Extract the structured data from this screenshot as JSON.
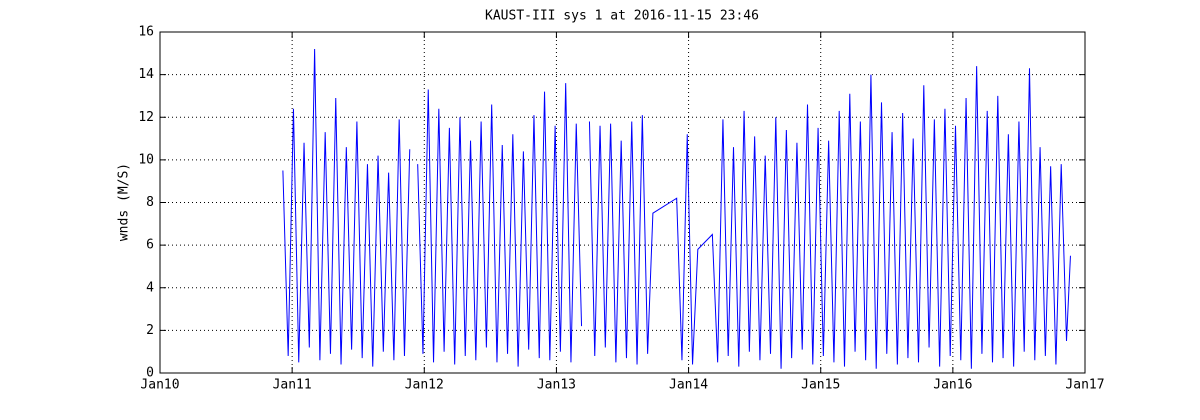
{
  "chart_data": {
    "type": "line",
    "title": "KAUST-III sys 1 at 2016-11-15 23:46",
    "y_label": "wnds (M/S)",
    "xlim": [
      2010,
      2017
    ],
    "xticks": [
      {
        "value": 2010,
        "label": "Jan10"
      },
      {
        "value": 2011,
        "label": "Jan11"
      },
      {
        "value": 2012,
        "label": "Jan12"
      },
      {
        "value": 2013,
        "label": "Jan13"
      },
      {
        "value": 2014,
        "label": "Jan14"
      },
      {
        "value": 2015,
        "label": "Jan15"
      },
      {
        "value": 2016,
        "label": "Jan16"
      },
      {
        "value": 2017,
        "label": "Jan17"
      }
    ],
    "ylim": [
      0,
      16
    ],
    "yticks": [
      0,
      2,
      4,
      6,
      8,
      10,
      12,
      14,
      16
    ],
    "grid": true,
    "series": [
      {
        "color": "#0000ff",
        "x": [
          2010.93,
          2010.97,
          2011.01,
          2011.05,
          2011.09,
          2011.13,
          2011.17,
          2011.21,
          2011.25,
          2011.29,
          2011.33,
          2011.37,
          2011.41,
          2011.45,
          2011.49,
          2011.53,
          2011.57,
          2011.61,
          2011.65,
          2011.69,
          2011.73,
          2011.77,
          2011.81,
          2011.85,
          2011.89,
          2011.93,
          2011.95,
          2011.99,
          2012.03,
          2012.07,
          2012.11,
          2012.15,
          2012.19,
          2012.23,
          2012.27,
          2012.31,
          2012.35,
          2012.39,
          2012.43,
          2012.47,
          2012.51,
          2012.55,
          2012.59,
          2012.63,
          2012.67,
          2012.71,
          2012.75,
          2012.79,
          2012.83,
          2012.87,
          2012.91,
          2012.95,
          2012.99,
          2013.03,
          2013.07,
          2013.11,
          2013.15,
          2013.19,
          2013.22,
          2013.25,
          2013.29,
          2013.33,
          2013.37,
          2013.41,
          2013.45,
          2013.49,
          2013.53,
          2013.57,
          2013.61,
          2013.65,
          2013.69,
          2013.73,
          2013.91,
          2013.95,
          2013.99,
          2014.03,
          2014.07,
          2014.18,
          2014.22,
          2014.26,
          2014.3,
          2014.34,
          2014.38,
          2014.42,
          2014.46,
          2014.5,
          2014.54,
          2014.58,
          2014.62,
          2014.66,
          2014.7,
          2014.74,
          2014.78,
          2014.82,
          2014.86,
          2014.9,
          2014.94,
          2014.98,
          2015.02,
          2015.06,
          2015.1,
          2015.14,
          2015.18,
          2015.22,
          2015.26,
          2015.3,
          2015.34,
          2015.38,
          2015.42,
          2015.46,
          2015.5,
          2015.54,
          2015.58,
          2015.62,
          2015.66,
          2015.7,
          2015.74,
          2015.78,
          2015.82,
          2015.86,
          2015.9,
          2015.94,
          2015.98,
          2016.02,
          2016.06,
          2016.1,
          2016.14,
          2016.18,
          2016.22,
          2016.26,
          2016.3,
          2016.34,
          2016.38,
          2016.42,
          2016.46,
          2016.5,
          2016.54,
          2016.58,
          2016.62,
          2016.66,
          2016.7,
          2016.74,
          2016.78,
          2016.82,
          2016.86,
          2016.89
        ],
        "values": [
          9.5,
          0.8,
          12.4,
          0.5,
          10.8,
          1.2,
          15.2,
          0.6,
          11.3,
          0.9,
          12.9,
          0.4,
          10.6,
          1.1,
          11.8,
          0.7,
          9.8,
          0.3,
          10.2,
          1.0,
          9.4,
          0.6,
          11.9,
          0.8,
          10.5,
          null,
          9.8,
          0.9,
          13.3,
          0.5,
          12.4,
          1.0,
          11.5,
          0.4,
          12.0,
          0.8,
          10.9,
          0.6,
          11.8,
          1.2,
          12.6,
          0.5,
          10.7,
          0.9,
          11.2,
          0.3,
          10.4,
          1.1,
          12.1,
          0.7,
          13.2,
          0.6,
          11.6,
          1.0,
          13.6,
          0.5,
          11.7,
          2.2,
          null,
          11.8,
          0.8,
          11.6,
          1.2,
          11.7,
          0.5,
          10.9,
          0.7,
          11.8,
          0.4,
          12.1,
          0.9,
          7.5,
          8.2,
          0.6,
          11.2,
          0.4,
          5.8,
          6.5,
          0.5,
          11.9,
          0.8,
          10.6,
          0.3,
          12.3,
          1.0,
          11.1,
          0.6,
          10.2,
          0.9,
          12.0,
          0.2,
          11.4,
          0.7,
          10.8,
          1.1,
          12.6,
          0.4,
          11.5,
          0.8,
          10.9,
          0.5,
          12.3,
          0.3,
          13.1,
          1.0,
          11.8,
          0.6,
          14.0,
          0.2,
          12.7,
          0.9,
          11.3,
          0.4,
          12.2,
          0.7,
          11.0,
          0.5,
          13.5,
          1.2,
          11.9,
          0.3,
          12.4,
          0.8,
          11.6,
          0.6,
          12.9,
          0.2,
          14.4,
          0.9,
          12.3,
          0.5,
          13.0,
          0.7,
          11.2,
          0.3,
          11.8,
          1.0,
          14.3,
          0.6,
          10.6,
          0.8,
          9.7,
          0.4,
          9.8,
          1.5,
          5.5
        ]
      }
    ]
  }
}
